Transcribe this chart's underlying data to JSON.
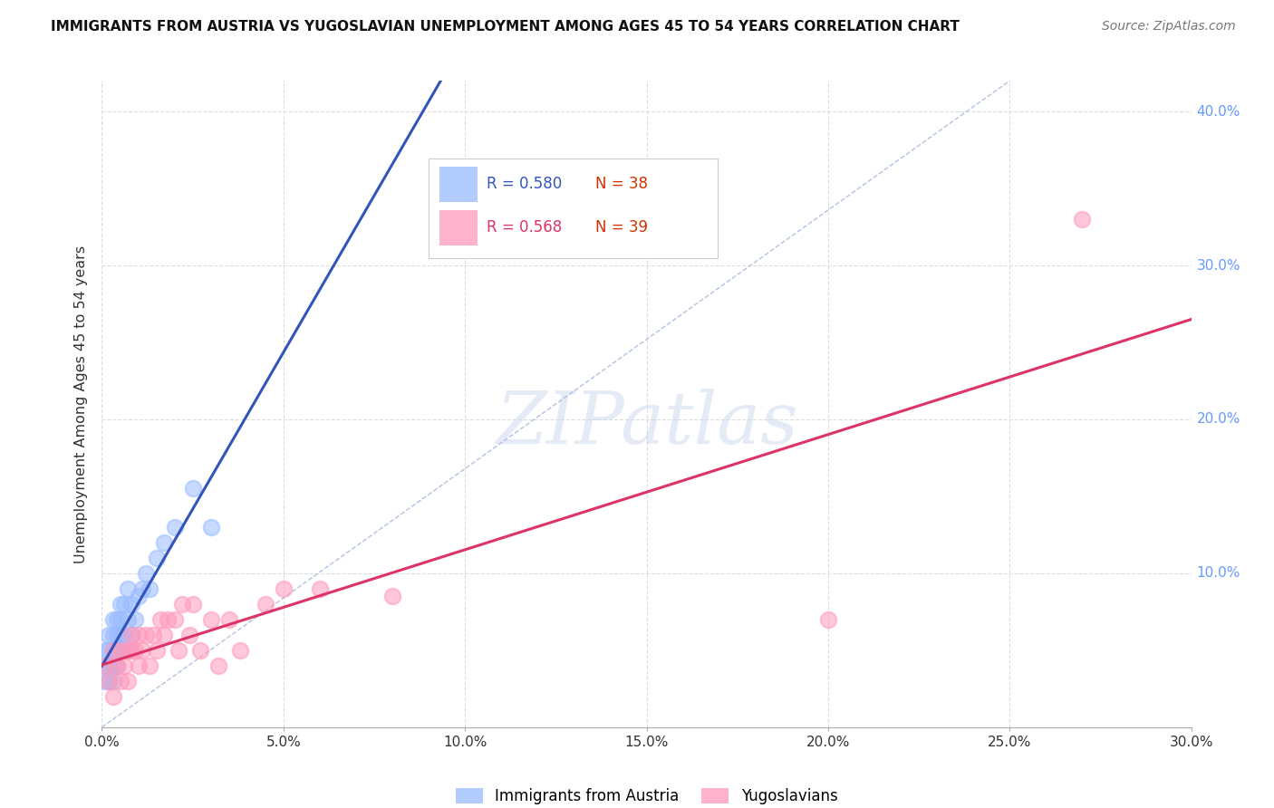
{
  "title": "IMMIGRANTS FROM AUSTRIA VS YUGOSLAVIAN UNEMPLOYMENT AMONG AGES 45 TO 54 YEARS CORRELATION CHART",
  "source": "Source: ZipAtlas.com",
  "ylabel": "Unemployment Among Ages 45 to 54 years",
  "watermark_text": "ZIPatlas",
  "R_austria": 0.58,
  "N_austria": 38,
  "R_yugo": 0.568,
  "N_yugo": 39,
  "xlim": [
    0,
    0.3
  ],
  "ylim": [
    0,
    0.42
  ],
  "xtick_vals": [
    0.0,
    0.05,
    0.1,
    0.15,
    0.2,
    0.25,
    0.3
  ],
  "ytick_vals": [
    0.1,
    0.2,
    0.3,
    0.4
  ],
  "austria_color": "#99bbff",
  "yugo_color": "#ff99bb",
  "austria_line_color": "#3355bb",
  "yugo_line_color": "#dd3366",
  "diag_color": "#aabbdd",
  "austria_x": [
    0.001,
    0.001,
    0.001,
    0.002,
    0.002,
    0.002,
    0.002,
    0.003,
    0.003,
    0.003,
    0.003,
    0.003,
    0.004,
    0.004,
    0.004,
    0.004,
    0.005,
    0.005,
    0.005,
    0.005,
    0.006,
    0.006,
    0.006,
    0.007,
    0.007,
    0.007,
    0.008,
    0.008,
    0.009,
    0.01,
    0.011,
    0.012,
    0.013,
    0.015,
    0.017,
    0.02,
    0.025,
    0.03
  ],
  "austria_y": [
    0.03,
    0.04,
    0.05,
    0.03,
    0.04,
    0.05,
    0.06,
    0.03,
    0.04,
    0.05,
    0.06,
    0.07,
    0.04,
    0.05,
    0.06,
    0.07,
    0.05,
    0.06,
    0.07,
    0.08,
    0.05,
    0.06,
    0.08,
    0.05,
    0.07,
    0.09,
    0.06,
    0.08,
    0.07,
    0.085,
    0.09,
    0.1,
    0.09,
    0.11,
    0.12,
    0.13,
    0.155,
    0.13
  ],
  "yugo_x": [
    0.001,
    0.002,
    0.003,
    0.003,
    0.004,
    0.005,
    0.005,
    0.006,
    0.007,
    0.007,
    0.008,
    0.008,
    0.009,
    0.01,
    0.01,
    0.011,
    0.012,
    0.013,
    0.014,
    0.015,
    0.016,
    0.017,
    0.018,
    0.02,
    0.021,
    0.022,
    0.024,
    0.025,
    0.027,
    0.03,
    0.032,
    0.035,
    0.038,
    0.045,
    0.05,
    0.06,
    0.08,
    0.2,
    0.27
  ],
  "yugo_y": [
    0.04,
    0.03,
    0.05,
    0.02,
    0.04,
    0.03,
    0.05,
    0.04,
    0.03,
    0.05,
    0.05,
    0.06,
    0.05,
    0.04,
    0.06,
    0.05,
    0.06,
    0.04,
    0.06,
    0.05,
    0.07,
    0.06,
    0.07,
    0.07,
    0.05,
    0.08,
    0.06,
    0.08,
    0.05,
    0.07,
    0.04,
    0.07,
    0.05,
    0.08,
    0.09,
    0.09,
    0.085,
    0.07,
    0.33
  ]
}
